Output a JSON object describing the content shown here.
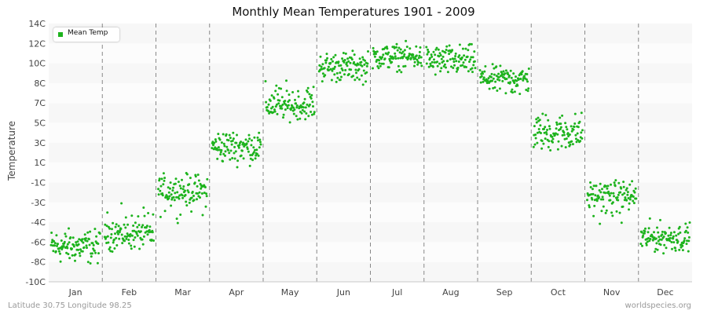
{
  "chart_data": {
    "type": "scatter",
    "title": "Monthly Mean Temperatures 1901 - 2009",
    "ylabel": "Temperature",
    "xlabel": "",
    "categories": [
      "Jan",
      "Feb",
      "Mar",
      "Apr",
      "May",
      "Jun",
      "Jul",
      "Aug",
      "Sep",
      "Oct",
      "Nov",
      "Dec"
    ],
    "yticks": [
      "-10C",
      "-8C",
      "-6C",
      "-4C",
      "-3C",
      "-1C",
      "1C",
      "3C",
      "5C",
      "7C",
      "8C",
      "10C",
      "12C",
      "14C"
    ],
    "ylim": [
      -10,
      14
    ],
    "grid": true,
    "legend_position": "top-left",
    "series": [
      {
        "name": "Mean Temp",
        "color": "#1db31d",
        "monthly_ranges": [
          {
            "month": "Jan",
            "min": -8.9,
            "max": -4.0,
            "mean": -6.2
          },
          {
            "month": "Feb",
            "min": -7.5,
            "max": -2.8,
            "mean": -4.5
          },
          {
            "month": "Mar",
            "min": -4.2,
            "max": 0.5,
            "mean": -1.6
          },
          {
            "month": "Apr",
            "min": 0.2,
            "max": 5.0,
            "mean": 2.3
          },
          {
            "month": "May",
            "min": 4.8,
            "max": 8.6,
            "mean": 6.7
          },
          {
            "month": "Jun",
            "min": 7.5,
            "max": 11.8,
            "mean": 9.3
          },
          {
            "month": "Jul",
            "min": 8.8,
            "max": 12.5,
            "mean": 10.6
          },
          {
            "month": "Aug",
            "min": 8.0,
            "max": 12.5,
            "mean": 9.8
          },
          {
            "month": "Sep",
            "min": 6.7,
            "max": 10.2,
            "mean": 8.3
          },
          {
            "month": "Oct",
            "min": 1.3,
            "max": 6.8,
            "mean": 3.8
          },
          {
            "month": "Nov",
            "min": -4.5,
            "max": -0.2,
            "mean": -2.3
          },
          {
            "month": "Dec",
            "min": -7.6,
            "max": -3.5,
            "mean": -5.3
          }
        ],
        "years": [
          1901,
          2009
        ]
      }
    ]
  },
  "footer": {
    "location": "Latitude 30.75 Longitude 98.25",
    "source": "worldspecies.org"
  }
}
